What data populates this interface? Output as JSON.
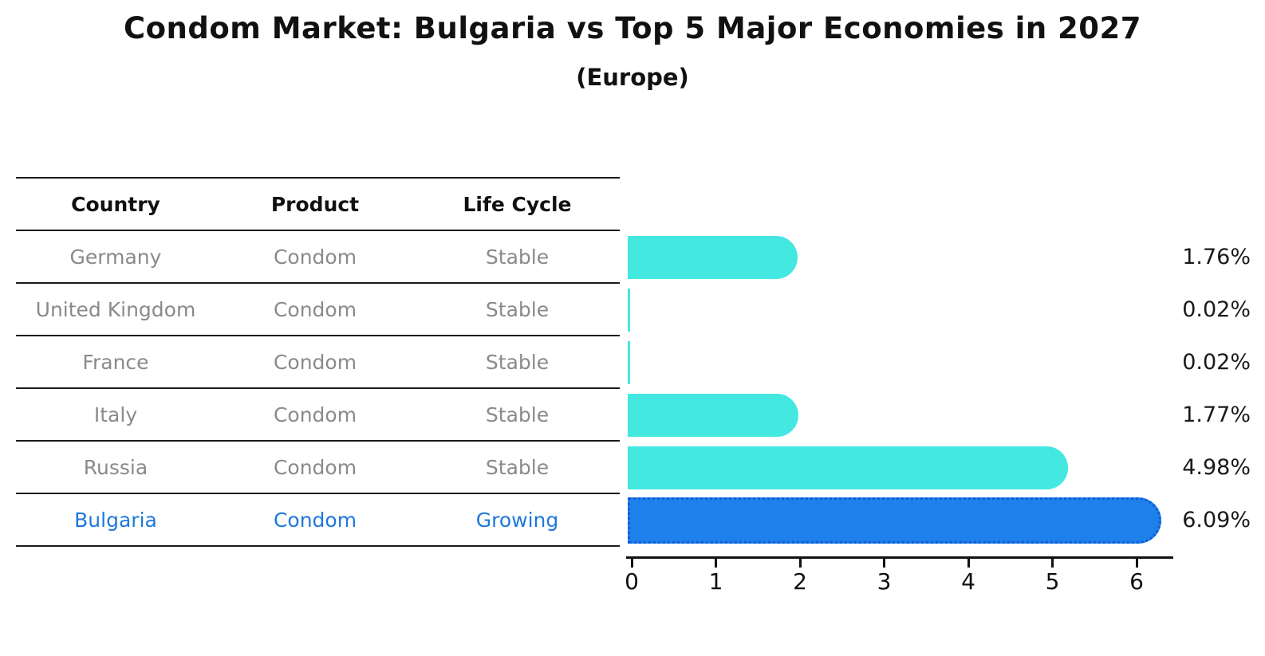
{
  "title": "Condom Market: Bulgaria vs Top 5 Major Economies in 2027",
  "subtitle": "(Europe)",
  "table": {
    "headers": [
      "Country",
      "Product",
      "Life Cycle"
    ],
    "rows": [
      {
        "country": "Germany",
        "product": "Condom",
        "life_cycle": "Stable"
      },
      {
        "country": "United Kingdom",
        "product": "Condom",
        "life_cycle": "Stable"
      },
      {
        "country": "France",
        "product": "Condom",
        "life_cycle": "Stable"
      },
      {
        "country": "Italy",
        "product": "Condom",
        "life_cycle": "Stable"
      },
      {
        "country": "Russia",
        "product": "Condom",
        "life_cycle": "Stable"
      },
      {
        "country": "Bulgaria",
        "product": "Condom",
        "life_cycle": "Growing"
      }
    ]
  },
  "chart_data": {
    "type": "bar",
    "orientation": "horizontal",
    "title": "Condom Market: Bulgaria vs Top 5 Major Economies in 2027 (Europe)",
    "categories": [
      "Germany",
      "United Kingdom",
      "France",
      "Italy",
      "Russia",
      "Bulgaria"
    ],
    "values": [
      1.76,
      0.02,
      0.02,
      1.77,
      4.98,
      6.09
    ],
    "value_labels": [
      "1.76%",
      "0.02%",
      "0.02%",
      "1.77%",
      "4.98%",
      "6.09%"
    ],
    "highlight_category": "Bulgaria",
    "x_ticks": [
      "0",
      "1",
      "2",
      "3",
      "4",
      "5",
      "6"
    ],
    "xlim": [
      0,
      6.45
    ],
    "xlabel": "",
    "ylabel": "",
    "grid": false,
    "legend": "none",
    "colors": {
      "bar": "#43E8E0",
      "highlight_bar": "#1E80EB",
      "highlight_bar_border": "#0C5CD6",
      "row_text": "#8A8A8A",
      "highlight_text": "#1E78DC",
      "axis": "#111111"
    }
  }
}
